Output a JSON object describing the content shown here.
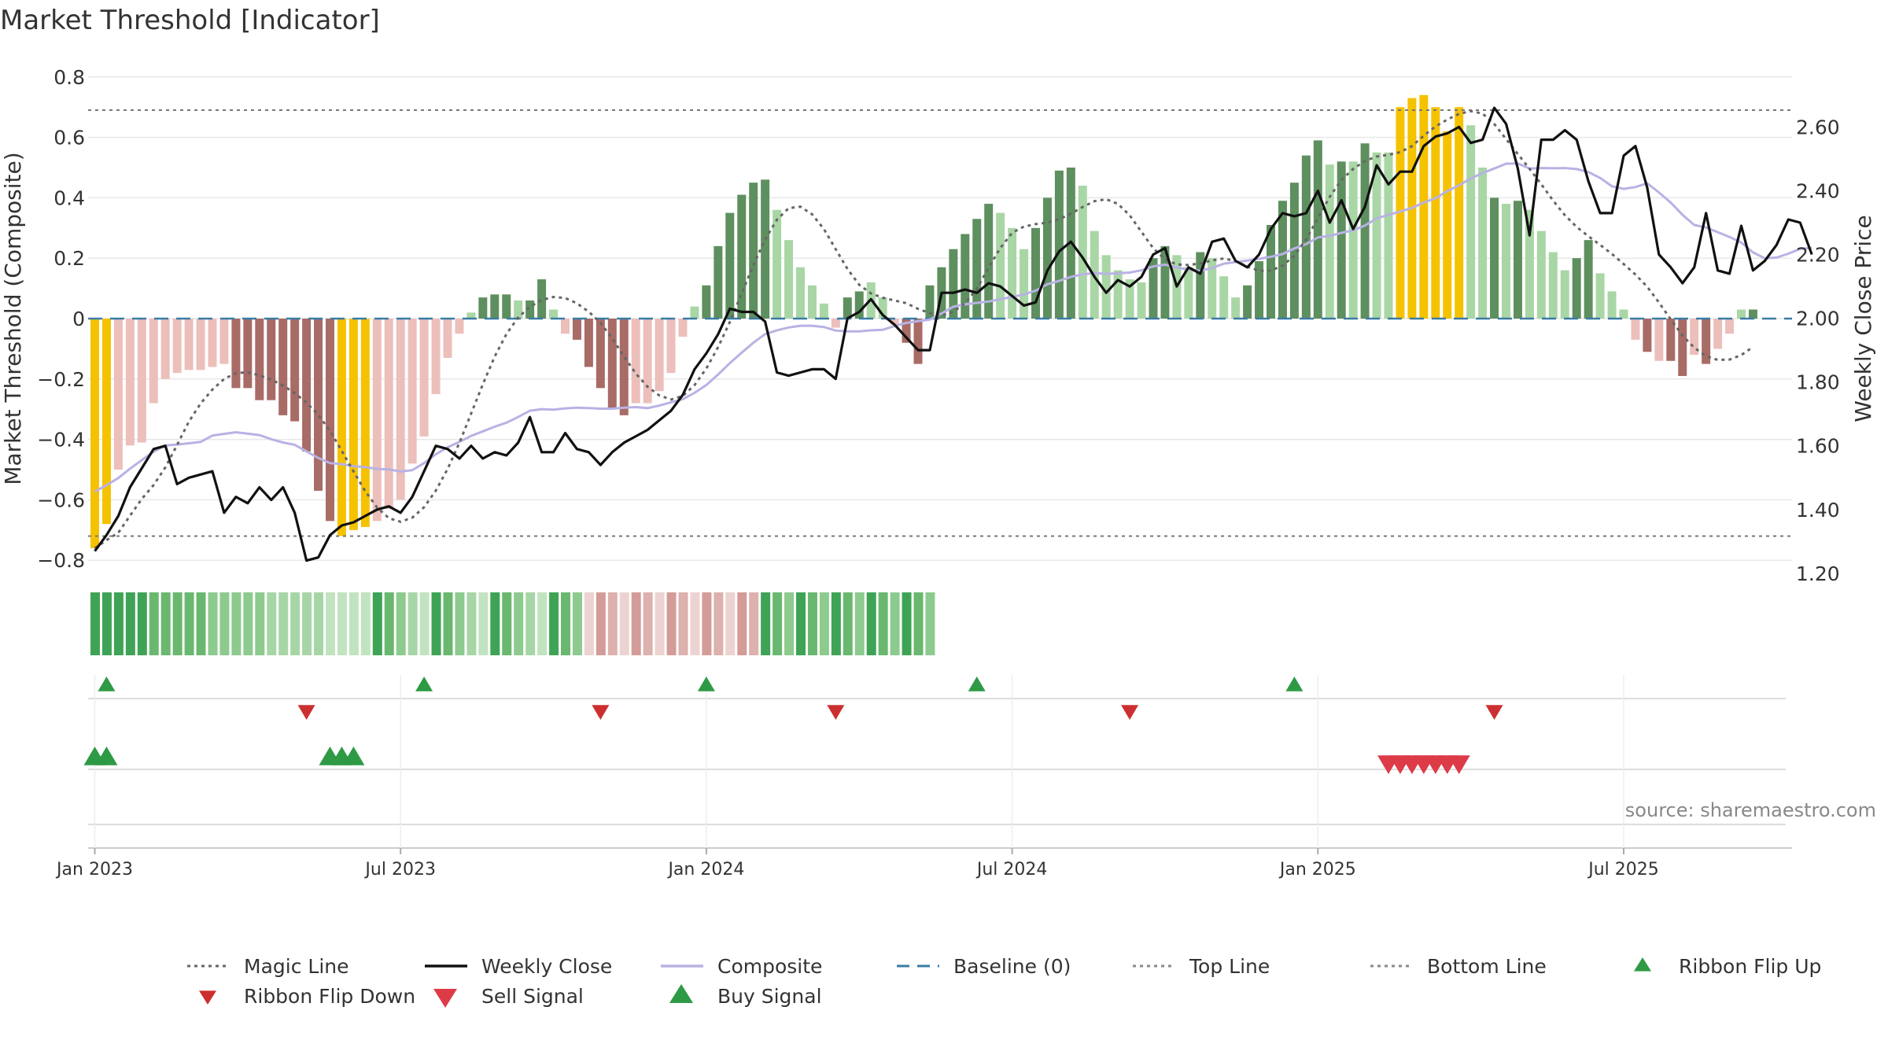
{
  "title": "Market Threshold [Indicator]",
  "source": "source: sharemaestro.com",
  "colors": {
    "gold": "#f5c200",
    "dark_green": "#5e8f5e",
    "light_green": "#a9d6a5",
    "dark_red": "#a86b66",
    "light_red": "#ecbfbb",
    "magic_line": "#666666",
    "weekly_close": "#111111",
    "composite": "#b8b2e4",
    "baseline": "#3a7ca5",
    "ribbon_up": "#2e9a45",
    "ribbon_down": "#cc2f2f",
    "sell": "#dd3b48",
    "buy": "#2e9a45",
    "grid": "#e8e8e8"
  },
  "legend": [
    {
      "label": "Magic Line",
      "kind": "dotted",
      "color": "#666666"
    },
    {
      "label": "Weekly Close",
      "kind": "solid",
      "color": "#111111"
    },
    {
      "label": "Composite",
      "kind": "solid",
      "color": "#b8b2e4"
    },
    {
      "label": "Baseline (0)",
      "kind": "dashed",
      "color": "#3a7ca5"
    },
    {
      "label": "Top Line",
      "kind": "dotted",
      "color": "#888888"
    },
    {
      "label": "Bottom Line",
      "kind": "dotted",
      "color": "#888888"
    },
    {
      "label": "Ribbon Flip Up",
      "kind": "tri-up",
      "color": "#2e9a45"
    },
    {
      "label": "Ribbon Flip Down",
      "kind": "tri-down",
      "color": "#cc2f2f"
    },
    {
      "label": "Sell Signal",
      "kind": "tri-down-big",
      "color": "#dd3b48"
    },
    {
      "label": "Buy Signal",
      "kind": "tri-up-big",
      "color": "#2e9a45"
    }
  ],
  "chart_data": {
    "type": "bar",
    "title": "Market Threshold [Indicator]",
    "ylabel": "Market Threshold (Composite)",
    "ylabel_right": "Weekly Close Price",
    "ylim": [
      -0.8,
      0.8
    ],
    "ylim_right": [
      1.16,
      2.66
    ],
    "y_ticks": [
      {
        "v": 0.8,
        "label": "0.8"
      },
      {
        "v": 0.6,
        "label": "0.6"
      },
      {
        "v": 0.4,
        "label": "0.4"
      },
      {
        "v": 0.2,
        "label": "0.2"
      },
      {
        "v": 0,
        "label": "0"
      },
      {
        "v": -0.2,
        "label": "−0.2"
      },
      {
        "v": -0.4,
        "label": "−0.4"
      },
      {
        "v": -0.6,
        "label": "−0.6"
      },
      {
        "v": -0.8,
        "label": "−0.8"
      }
    ],
    "y_right_ticks": [
      {
        "v": 2.6,
        "label": "2.60"
      },
      {
        "v": 2.4,
        "label": "2.40"
      },
      {
        "v": 2.2,
        "label": "2.20"
      },
      {
        "v": 2.0,
        "label": "2.00"
      },
      {
        "v": 1.8,
        "label": "1.80"
      },
      {
        "v": 1.6,
        "label": "1.60"
      },
      {
        "v": 1.4,
        "label": "1.40"
      },
      {
        "v": 1.2,
        "label": "1.20"
      }
    ],
    "x_ticks": [
      {
        "week": 1,
        "label": "Jan 2023"
      },
      {
        "week": 27,
        "label": "Jul 2023"
      },
      {
        "week": 53,
        "label": "Jan 2024"
      },
      {
        "week": 79,
        "label": "Jul 2024"
      },
      {
        "week": 105,
        "label": "Jan 2025"
      },
      {
        "week": 131,
        "label": "Jul 2025"
      }
    ],
    "top_line": 0.69,
    "bottom_line": -0.72,
    "baseline": 0,
    "composite_bars": [
      {
        "v": -0.76,
        "c": "g"
      },
      {
        "v": -0.68,
        "c": "g"
      },
      {
        "v": -0.5,
        "c": "lr"
      },
      {
        "v": -0.42,
        "c": "lr"
      },
      {
        "v": -0.41,
        "c": "lr"
      },
      {
        "v": -0.28,
        "c": "lr"
      },
      {
        "v": -0.2,
        "c": "lr"
      },
      {
        "v": -0.18,
        "c": "lr"
      },
      {
        "v": -0.17,
        "c": "lr"
      },
      {
        "v": -0.17,
        "c": "lr"
      },
      {
        "v": -0.16,
        "c": "lr"
      },
      {
        "v": -0.15,
        "c": "lr"
      },
      {
        "v": -0.23,
        "c": "dr"
      },
      {
        "v": -0.23,
        "c": "dr"
      },
      {
        "v": -0.27,
        "c": "dr"
      },
      {
        "v": -0.27,
        "c": "dr"
      },
      {
        "v": -0.32,
        "c": "dr"
      },
      {
        "v": -0.34,
        "c": "dr"
      },
      {
        "v": -0.44,
        "c": "dr"
      },
      {
        "v": -0.57,
        "c": "dr"
      },
      {
        "v": -0.67,
        "c": "dr"
      },
      {
        "v": -0.72,
        "c": "g"
      },
      {
        "v": -0.7,
        "c": "g"
      },
      {
        "v": -0.69,
        "c": "g"
      },
      {
        "v": -0.67,
        "c": "lr"
      },
      {
        "v": -0.63,
        "c": "lr"
      },
      {
        "v": -0.6,
        "c": "lr"
      },
      {
        "v": -0.48,
        "c": "lr"
      },
      {
        "v": -0.39,
        "c": "lr"
      },
      {
        "v": -0.25,
        "c": "lr"
      },
      {
        "v": -0.13,
        "c": "lr"
      },
      {
        "v": -0.05,
        "c": "lr"
      },
      {
        "v": 0.02,
        "c": "lg"
      },
      {
        "v": 0.07,
        "c": "dg"
      },
      {
        "v": 0.08,
        "c": "dg"
      },
      {
        "v": 0.08,
        "c": "dg"
      },
      {
        "v": 0.06,
        "c": "lg"
      },
      {
        "v": 0.06,
        "c": "dg"
      },
      {
        "v": 0.13,
        "c": "dg"
      },
      {
        "v": 0.03,
        "c": "lg"
      },
      {
        "v": -0.05,
        "c": "lr"
      },
      {
        "v": -0.07,
        "c": "dr"
      },
      {
        "v": -0.16,
        "c": "dr"
      },
      {
        "v": -0.23,
        "c": "dr"
      },
      {
        "v": -0.3,
        "c": "dr"
      },
      {
        "v": -0.32,
        "c": "dr"
      },
      {
        "v": -0.28,
        "c": "lr"
      },
      {
        "v": -0.28,
        "c": "lr"
      },
      {
        "v": -0.24,
        "c": "lr"
      },
      {
        "v": -0.18,
        "c": "lr"
      },
      {
        "v": -0.06,
        "c": "lr"
      },
      {
        "v": 0.04,
        "c": "lg"
      },
      {
        "v": 0.11,
        "c": "dg"
      },
      {
        "v": 0.24,
        "c": "dg"
      },
      {
        "v": 0.35,
        "c": "dg"
      },
      {
        "v": 0.41,
        "c": "dg"
      },
      {
        "v": 0.45,
        "c": "dg"
      },
      {
        "v": 0.46,
        "c": "dg"
      },
      {
        "v": 0.36,
        "c": "lg"
      },
      {
        "v": 0.26,
        "c": "lg"
      },
      {
        "v": 0.17,
        "c": "lg"
      },
      {
        "v": 0.11,
        "c": "lg"
      },
      {
        "v": 0.05,
        "c": "lg"
      },
      {
        "v": -0.03,
        "c": "lr"
      },
      {
        "v": 0.07,
        "c": "dg"
      },
      {
        "v": 0.09,
        "c": "dg"
      },
      {
        "v": 0.12,
        "c": "lg"
      },
      {
        "v": 0.07,
        "c": "lg"
      },
      {
        "v": -0.02,
        "c": "lr"
      },
      {
        "v": -0.08,
        "c": "dr"
      },
      {
        "v": -0.15,
        "c": "dr"
      },
      {
        "v": 0.11,
        "c": "dg"
      },
      {
        "v": 0.17,
        "c": "dg"
      },
      {
        "v": 0.23,
        "c": "dg"
      },
      {
        "v": 0.28,
        "c": "dg"
      },
      {
        "v": 0.33,
        "c": "dg"
      },
      {
        "v": 0.38,
        "c": "dg"
      },
      {
        "v": 0.35,
        "c": "lg"
      },
      {
        "v": 0.3,
        "c": "lg"
      },
      {
        "v": 0.23,
        "c": "lg"
      },
      {
        "v": 0.3,
        "c": "dg"
      },
      {
        "v": 0.4,
        "c": "dg"
      },
      {
        "v": 0.49,
        "c": "dg"
      },
      {
        "v": 0.5,
        "c": "dg"
      },
      {
        "v": 0.44,
        "c": "lg"
      },
      {
        "v": 0.29,
        "c": "lg"
      },
      {
        "v": 0.21,
        "c": "lg"
      },
      {
        "v": 0.16,
        "c": "lg"
      },
      {
        "v": 0.13,
        "c": "lg"
      },
      {
        "v": 0.12,
        "c": "lg"
      },
      {
        "v": 0.2,
        "c": "dg"
      },
      {
        "v": 0.24,
        "c": "dg"
      },
      {
        "v": 0.21,
        "c": "lg"
      },
      {
        "v": 0.17,
        "c": "lg"
      },
      {
        "v": 0.22,
        "c": "dg"
      },
      {
        "v": 0.2,
        "c": "lg"
      },
      {
        "v": 0.14,
        "c": "lg"
      },
      {
        "v": 0.07,
        "c": "lg"
      },
      {
        "v": 0.11,
        "c": "dg"
      },
      {
        "v": 0.19,
        "c": "dg"
      },
      {
        "v": 0.31,
        "c": "dg"
      },
      {
        "v": 0.39,
        "c": "dg"
      },
      {
        "v": 0.45,
        "c": "dg"
      },
      {
        "v": 0.54,
        "c": "dg"
      },
      {
        "v": 0.59,
        "c": "dg"
      },
      {
        "v": 0.51,
        "c": "lg"
      },
      {
        "v": 0.52,
        "c": "dg"
      },
      {
        "v": 0.52,
        "c": "lg"
      },
      {
        "v": 0.58,
        "c": "dg"
      },
      {
        "v": 0.55,
        "c": "lg"
      },
      {
        "v": 0.55,
        "c": "lg"
      },
      {
        "v": 0.7,
        "c": "g"
      },
      {
        "v": 0.73,
        "c": "g"
      },
      {
        "v": 0.74,
        "c": "g"
      },
      {
        "v": 0.7,
        "c": "g"
      },
      {
        "v": 0.62,
        "c": "g"
      },
      {
        "v": 0.7,
        "c": "g"
      },
      {
        "v": 0.64,
        "c": "lg"
      },
      {
        "v": 0.5,
        "c": "lg"
      },
      {
        "v": 0.4,
        "c": "dg"
      },
      {
        "v": 0.38,
        "c": "lg"
      },
      {
        "v": 0.39,
        "c": "dg"
      },
      {
        "v": 0.36,
        "c": "lg"
      },
      {
        "v": 0.29,
        "c": "lg"
      },
      {
        "v": 0.22,
        "c": "lg"
      },
      {
        "v": 0.16,
        "c": "lg"
      },
      {
        "v": 0.2,
        "c": "dg"
      },
      {
        "v": 0.26,
        "c": "dg"
      },
      {
        "v": 0.15,
        "c": "lg"
      },
      {
        "v": 0.09,
        "c": "lg"
      },
      {
        "v": 0.03,
        "c": "lg"
      },
      {
        "v": -0.07,
        "c": "lr"
      },
      {
        "v": -0.11,
        "c": "dr"
      },
      {
        "v": -0.14,
        "c": "lr"
      },
      {
        "v": -0.14,
        "c": "dr"
      },
      {
        "v": -0.19,
        "c": "dr"
      },
      {
        "v": -0.12,
        "c": "lr"
      },
      {
        "v": -0.15,
        "c": "dr"
      },
      {
        "v": -0.1,
        "c": "lr"
      },
      {
        "v": -0.05,
        "c": "lr"
      },
      {
        "v": 0.03,
        "c": "lg"
      },
      {
        "v": 0.03,
        "c": "dg"
      }
    ],
    "weekly_close": [
      1.27,
      1.32,
      1.38,
      1.47,
      1.53,
      1.59,
      1.6,
      1.48,
      1.5,
      1.51,
      1.52,
      1.39,
      1.44,
      1.42,
      1.47,
      1.43,
      1.47,
      1.39,
      1.24,
      1.25,
      1.32,
      1.35,
      1.36,
      1.38,
      1.4,
      1.41,
      1.39,
      1.44,
      1.52,
      1.6,
      1.59,
      1.56,
      1.6,
      1.56,
      1.58,
      1.57,
      1.61,
      1.69,
      1.58,
      1.58,
      1.64,
      1.59,
      1.58,
      1.54,
      1.58,
      1.61,
      1.63,
      1.65,
      1.68,
      1.71,
      1.76,
      1.84,
      1.89,
      1.95,
      2.03,
      2.02,
      2.02,
      1.99,
      1.83,
      1.82,
      1.83,
      1.84,
      1.84,
      1.81,
      2.0,
      2.02,
      2.06,
      2.01,
      1.98,
      1.94,
      1.9,
      1.9,
      2.08,
      2.08,
      2.09,
      2.08,
      2.11,
      2.1,
      2.07,
      2.04,
      2.05,
      2.15,
      2.21,
      2.24,
      2.19,
      2.13,
      2.08,
      2.12,
      2.1,
      2.13,
      2.2,
      2.22,
      2.1,
      2.16,
      2.14,
      2.24,
      2.25,
      2.18,
      2.16,
      2.2,
      2.28,
      2.33,
      2.32,
      2.33,
      2.4,
      2.3,
      2.37,
      2.28,
      2.35,
      2.48,
      2.42,
      2.46,
      2.46,
      2.54,
      2.57,
      2.58,
      2.6,
      2.55,
      2.56,
      2.66,
      2.61,
      2.47,
      2.26,
      2.56,
      2.56,
      2.59,
      2.56,
      2.43,
      2.33,
      2.33,
      2.51,
      2.54,
      2.41,
      2.2,
      2.16,
      2.11,
      2.16,
      2.33,
      2.15,
      2.14,
      2.29,
      2.15,
      2.18,
      2.23,
      2.31,
      2.3,
      2.2
    ]
  },
  "ribbon": [
    {
      "s": "g",
      "n": 24
    },
    {
      "s": "g",
      "n": 5
    },
    {
      "s": "g",
      "n": 5
    },
    {
      "s": "g",
      "n": 5
    },
    {
      "s": "g",
      "n": 3
    },
    {
      "s": "r",
      "n": 3
    },
    {
      "s": "r",
      "n": 3
    },
    {
      "s": "r",
      "n": 3
    },
    {
      "s": "r",
      "n": 3
    },
    {
      "s": "r",
      "n": 3
    },
    {
      "s": "g",
      "n": 3
    },
    {
      "s": "g",
      "n": 3
    },
    {
      "s": "g",
      "n": 3
    },
    {
      "s": "g",
      "n": 3
    },
    {
      "s": "g",
      "n": 3
    }
  ],
  "ribbon_flip_up_weeks": [
    2,
    29,
    53,
    76,
    103
  ],
  "ribbon_flip_down_weeks": [
    19,
    44,
    64,
    89,
    120
  ],
  "sell_signal_weeks": [
    111,
    112,
    113,
    114,
    115,
    116,
    117
  ],
  "buy_signal_weeks": [
    1,
    2,
    21,
    22,
    23
  ]
}
